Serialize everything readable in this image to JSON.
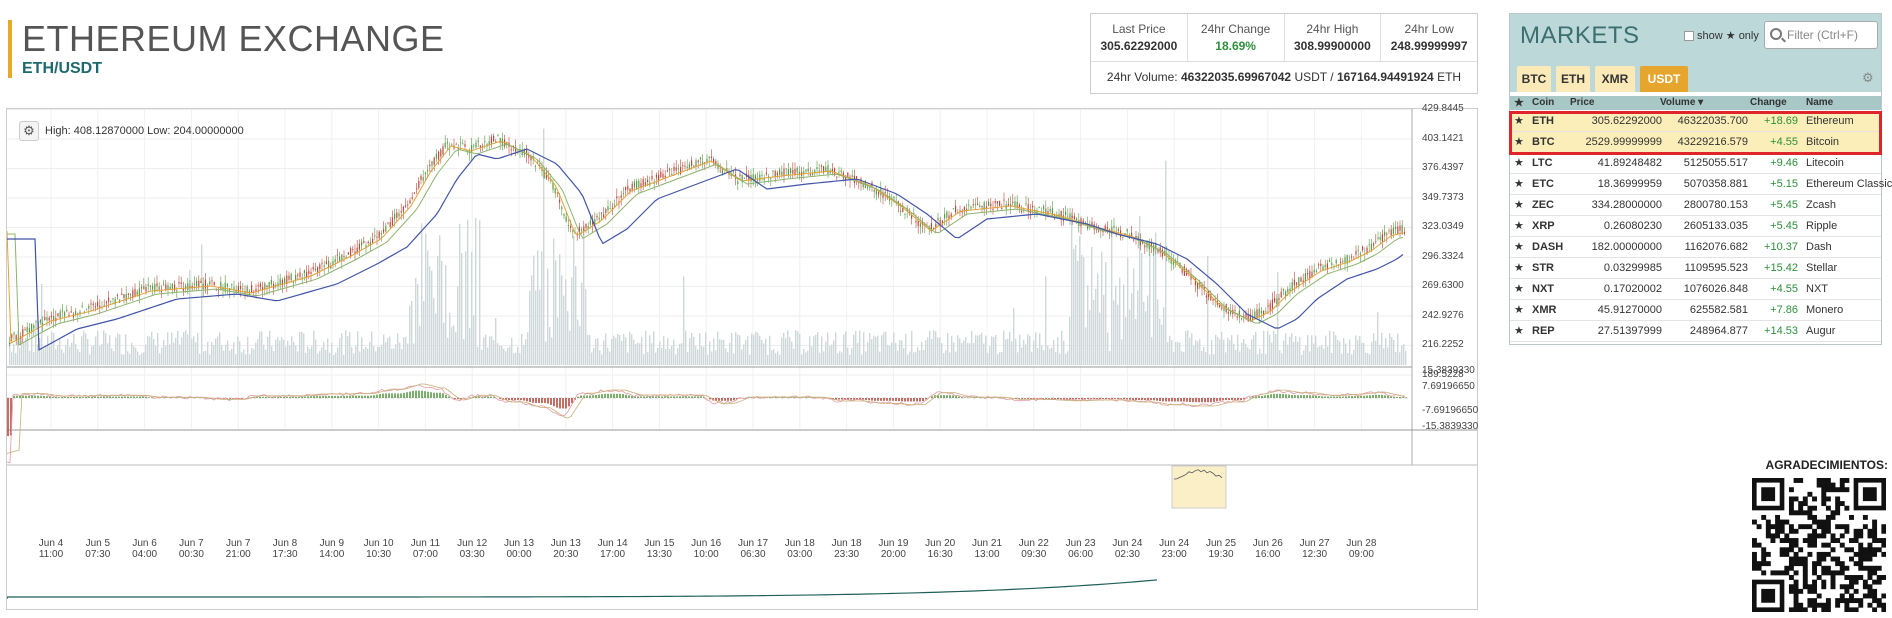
{
  "header": {
    "title": "ETHEREUM EXCHANGE",
    "pair": "ETH/USDT"
  },
  "stats": {
    "last_price_label": "Last Price",
    "last_price": "305.62292000",
    "change_label": "24hr Change",
    "change": "18.69%",
    "high_label": "24hr High",
    "high": "308.99900000",
    "low_label": "24hr Low",
    "low": "248.99999997",
    "volume_label": "24hr Volume:",
    "volume_usdt": "46322035.69967042",
    "volume_usdt_unit": "USDT",
    "sep": "/",
    "volume_eth": "167164.94491924",
    "volume_eth_unit": "ETH"
  },
  "chart": {
    "toolbar_text": "High: 408.12870000  Low: 204.00000000",
    "gear_icon": "gear-icon",
    "y_labels": [
      "429.8445",
      "403.1421",
      "376.4397",
      "349.7373",
      "323.0349",
      "296.3324",
      "269.6300",
      "242.9276",
      "216.2252",
      "189.5228"
    ],
    "macd_labels": [
      "15.3839330",
      "7.69196650",
      "-7.69196650",
      "-15.3839330"
    ],
    "x_labels": [
      {
        "d": "Jun 4",
        "t": "11:00"
      },
      {
        "d": "Jun 5",
        "t": "07:30"
      },
      {
        "d": "Jun 6",
        "t": "04:00"
      },
      {
        "d": "Jun 7",
        "t": "00:30"
      },
      {
        "d": "Jun 7",
        "t": "21:00"
      },
      {
        "d": "Jun 8",
        "t": "17:30"
      },
      {
        "d": "Jun 9",
        "t": "14:00"
      },
      {
        "d": "Jun 10",
        "t": "10:30"
      },
      {
        "d": "Jun 11",
        "t": "07:00"
      },
      {
        "d": "Jun 12",
        "t": "03:30"
      },
      {
        "d": "Jun 13",
        "t": "00:00"
      },
      {
        "d": "Jun 13",
        "t": "20:30"
      },
      {
        "d": "Jun 14",
        "t": "17:00"
      },
      {
        "d": "Jun 15",
        "t": "13:30"
      },
      {
        "d": "Jun 16",
        "t": "10:00"
      },
      {
        "d": "Jun 17",
        "t": "06:30"
      },
      {
        "d": "Jun 18",
        "t": "03:00"
      },
      {
        "d": "Jun 18",
        "t": "23:30"
      },
      {
        "d": "Jun 19",
        "t": "20:00"
      },
      {
        "d": "Jun 20",
        "t": "16:30"
      },
      {
        "d": "Jun 21",
        "t": "13:00"
      },
      {
        "d": "Jun 22",
        "t": "09:30"
      },
      {
        "d": "Jun 23",
        "t": "06:00"
      },
      {
        "d": "Jun 24",
        "t": "02:30"
      },
      {
        "d": "Jun 24",
        "t": "23:00"
      },
      {
        "d": "Jun 25",
        "t": "19:30"
      },
      {
        "d": "Jun 26",
        "t": "16:00"
      },
      {
        "d": "Jun 27",
        "t": "12:30"
      },
      {
        "d": "Jun 28",
        "t": "09:00"
      }
    ]
  },
  "markets": {
    "title": "MARKETS",
    "show_label": "show",
    "only_label": "only",
    "filter_placeholder": "Filter (Ctrl+F)",
    "tabs": [
      "BTC",
      "ETH",
      "XMR",
      "USDT"
    ],
    "active_tab": "USDT",
    "columns": {
      "coin": "Coin",
      "price": "Price",
      "volume": "Volume",
      "change": "Change",
      "name": "Name"
    },
    "rows": [
      {
        "coin": "ETH",
        "price": "305.62292000",
        "volume": "46322035.700",
        "change": "+18.69",
        "name": "Ethereum"
      },
      {
        "coin": "BTC",
        "price": "2529.99999999",
        "volume": "43229216.579",
        "change": "+4.55",
        "name": "Bitcoin"
      },
      {
        "coin": "LTC",
        "price": "41.89248482",
        "volume": "5125055.517",
        "change": "+9.46",
        "name": "Litecoin"
      },
      {
        "coin": "ETC",
        "price": "18.36999959",
        "volume": "5070358.881",
        "change": "+5.15",
        "name": "Ethereum Classic"
      },
      {
        "coin": "ZEC",
        "price": "334.28000000",
        "volume": "2800780.153",
        "change": "+5.45",
        "name": "Zcash"
      },
      {
        "coin": "XRP",
        "price": "0.26080230",
        "volume": "2605133.035",
        "change": "+5.45",
        "name": "Ripple"
      },
      {
        "coin": "DASH",
        "price": "182.00000000",
        "volume": "1162076.682",
        "change": "+10.37",
        "name": "Dash"
      },
      {
        "coin": "STR",
        "price": "0.03299985",
        "volume": "1109595.523",
        "change": "+15.42",
        "name": "Stellar"
      },
      {
        "coin": "NXT",
        "price": "0.17020002",
        "volume": "1076026.848",
        "change": "+4.55",
        "name": "NXT"
      },
      {
        "coin": "XMR",
        "price": "45.91270000",
        "volume": "625582.581",
        "change": "+7.86",
        "name": "Monero"
      },
      {
        "coin": "REP",
        "price": "27.51397999",
        "volume": "248964.877",
        "change": "+14.53",
        "name": "Augur"
      }
    ]
  },
  "qr": {
    "label": "AGRADECIMIENTOS:"
  },
  "colors": {
    "accent": "#e6a52c",
    "green": "#2d8f3a",
    "teal": "#bcd8d8",
    "highlight": "#e0242b"
  }
}
